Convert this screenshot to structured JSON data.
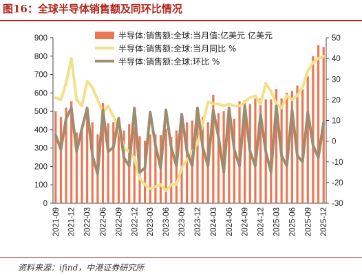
{
  "header": {
    "title": "图16：全球半导体销售额及同环比情况"
  },
  "footer": {
    "source": "资料来源：ifind，中港证券研究所"
  },
  "colors": {
    "accent": "#b0251c",
    "bar": "#ec7753",
    "yoy_line": "#f3e08a",
    "mom_line": "#9e8c70"
  },
  "chart_data": {
    "type": "bar",
    "title": "",
    "legend_position": "top-right",
    "grid": false,
    "x_tick_labels": [
      "2021-09",
      "2021-12",
      "2022-03",
      "2022-06",
      "2022-09",
      "2022-12",
      "2023-03",
      "2023-06",
      "2023-09",
      "2023-12",
      "2024-03",
      "2024-06",
      "2024-09",
      "2024-12",
      "2025-03",
      "2025-06",
      "2025-09",
      "2025-12"
    ],
    "categories": [
      "2021-09",
      "2021-10",
      "2021-11",
      "2021-12",
      "2022-01",
      "2022-02",
      "2022-03",
      "2022-04",
      "2022-05",
      "2022-06",
      "2022-07",
      "2022-08",
      "2022-09",
      "2022-10",
      "2022-11",
      "2022-12",
      "2023-01",
      "2023-02",
      "2023-03",
      "2023-04",
      "2023-05",
      "2023-06",
      "2023-07",
      "2023-08",
      "2023-09",
      "2023-10",
      "2023-11",
      "2023-12",
      "2024-01",
      "2024-02",
      "2024-03",
      "2024-04",
      "2024-05",
      "2024-06",
      "2024-07",
      "2024-08",
      "2024-09",
      "2024-10",
      "2024-11",
      "2024-12",
      "2025-01",
      "2025-02",
      "2025-03",
      "2025-04",
      "2025-05",
      "2025-06",
      "2025-07",
      "2025-08",
      "2025-09",
      "2025-10",
      "2025-11",
      "2025-12"
    ],
    "y_left": {
      "ylim": [
        0,
        900
      ],
      "ticks": [
        0,
        100,
        200,
        300,
        400,
        500,
        600,
        700,
        800,
        900
      ]
    },
    "y_right": {
      "ylim": [
        -30,
        50
      ],
      "ticks": [
        -30,
        -20,
        -10,
        0,
        10,
        20,
        30,
        40,
        50
      ]
    },
    "series": [
      {
        "name": "半导体:销售额:全球:当月值:亿美元 亿美元",
        "type": "bar",
        "axis": "left",
        "values": [
          500,
          470,
          520,
          555,
          385,
          400,
          510,
          440,
          375,
          545,
          435,
          440,
          470,
          395,
          430,
          415,
          365,
          340,
          375,
          375,
          370,
          405,
          360,
          395,
          445,
          440,
          450,
          440,
          470,
          440,
          590,
          490,
          500,
          500,
          460,
          555,
          560,
          540,
          570,
          570,
          565,
          565,
          620,
          570,
          600,
          610,
          640,
          620,
          690,
          800,
          860,
          850
        ]
      },
      {
        "name": "半导体:销售额:全球:当月同比 %",
        "type": "line",
        "axis": "right",
        "values": [
          21,
          20,
          28,
          40,
          20,
          17,
          29,
          26,
          20,
          14,
          17,
          12,
          6,
          -3,
          -5,
          -8,
          -18,
          -21,
          -23,
          -22,
          -21,
          -24,
          -21,
          -21,
          -13,
          -9,
          -5,
          -1,
          8,
          19,
          18,
          18,
          17,
          18,
          17,
          17,
          19,
          21,
          22,
          18,
          28,
          24,
          18,
          16,
          22,
          20,
          22,
          26,
          34,
          38,
          40,
          41
        ]
      },
      {
        "name": "半导体:销售额:全球:环比 %",
        "type": "line",
        "axis": "right",
        "values": [
          3,
          -4,
          11,
          16,
          -5,
          6,
          16,
          -7,
          -16,
          15,
          -5,
          -3,
          11,
          -8,
          -12,
          16,
          -15,
          -13,
          14,
          -2,
          -13,
          15,
          -3,
          -12,
          13,
          -5,
          -12,
          16,
          -3,
          -12,
          15,
          2,
          -15,
          16,
          -4,
          -12,
          17,
          -5,
          -12,
          13,
          -5,
          -15,
          17,
          -7,
          -12,
          15,
          -7,
          -10,
          14,
          -2,
          -8,
          9
        ]
      }
    ]
  }
}
